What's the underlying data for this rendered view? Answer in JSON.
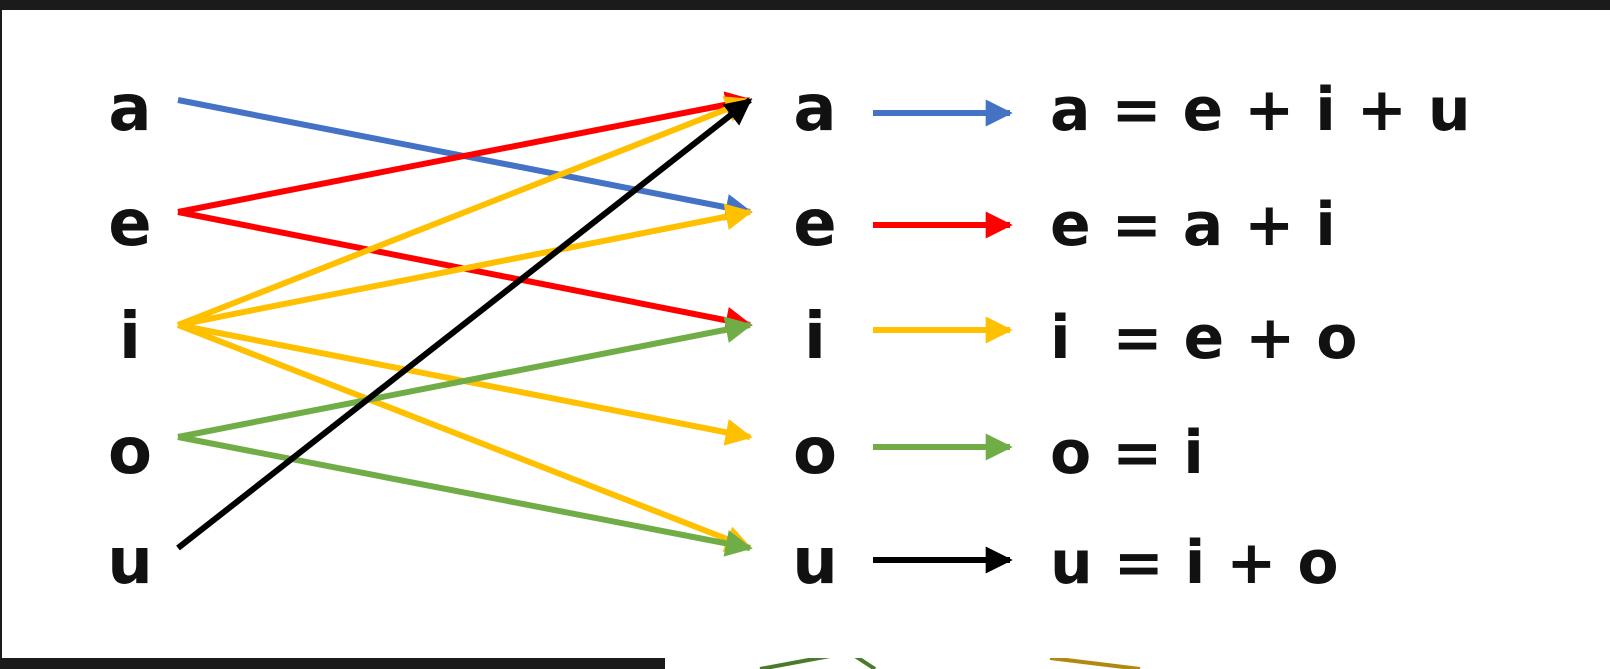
{
  "left_vowels": [
    {
      "id": "a",
      "label": "a"
    },
    {
      "id": "e",
      "label": "e"
    },
    {
      "id": "i",
      "label": "i"
    },
    {
      "id": "o",
      "label": "o"
    },
    {
      "id": "u",
      "label": "u"
    }
  ],
  "right_vowels": [
    {
      "id": "a",
      "label": "a"
    },
    {
      "id": "e",
      "label": "e"
    },
    {
      "id": "i",
      "label": "i"
    },
    {
      "id": "o",
      "label": "o"
    },
    {
      "id": "u",
      "label": "u"
    }
  ],
  "equations": [
    {
      "id": "a",
      "text": "a = e + i + u",
      "color": "#4472C4"
    },
    {
      "id": "e",
      "text": "e = a + i",
      "color": "#FF0000"
    },
    {
      "id": "i",
      "text": "i  = e + o",
      "color": "#FFC000"
    },
    {
      "id": "o",
      "text": "o = i",
      "color": "#70AD47"
    },
    {
      "id": "u",
      "text": "u = i + o",
      "color": "#000000"
    }
  ],
  "connections": [
    {
      "from": "a",
      "to": "e",
      "color": "#4472C4"
    },
    {
      "from": "e",
      "to": "a",
      "color": "#FF0000"
    },
    {
      "from": "e",
      "to": "i",
      "color": "#FF0000"
    },
    {
      "from": "i",
      "to": "a",
      "color": "#FFC000"
    },
    {
      "from": "i",
      "to": "e",
      "color": "#FFC000"
    },
    {
      "from": "i",
      "to": "o",
      "color": "#FFC000"
    },
    {
      "from": "i",
      "to": "u",
      "color": "#FFC000"
    },
    {
      "from": "o",
      "to": "i",
      "color": "#70AD47"
    },
    {
      "from": "o",
      "to": "u",
      "color": "#70AD47"
    },
    {
      "from": "u",
      "to": "a",
      "color": "#000000"
    }
  ],
  "colors": {
    "page_background": "#1b1b1b",
    "slide_background": "#ffffff",
    "background_lines": [
      "#4a7a2a",
      "#b08a10"
    ]
  }
}
